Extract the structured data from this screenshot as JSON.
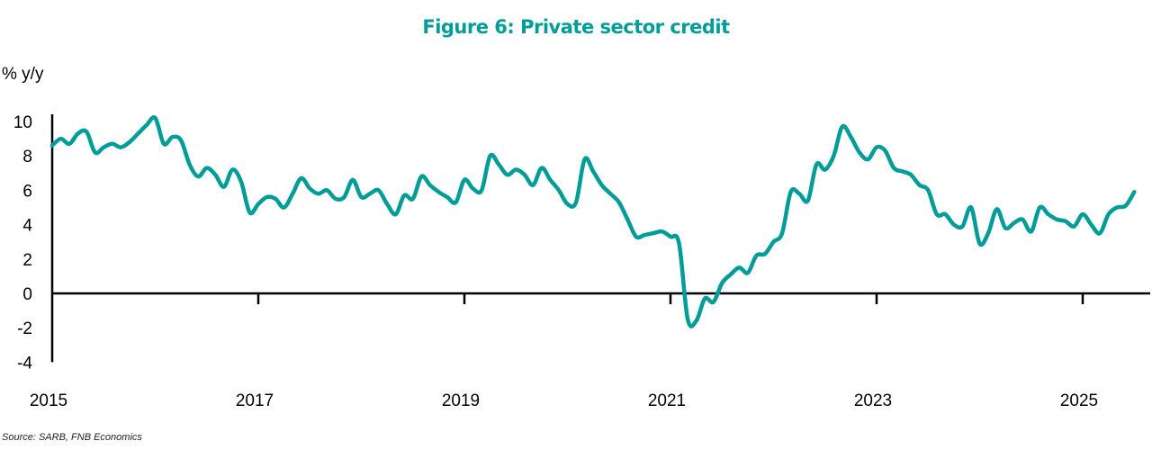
{
  "chart_data": {
    "type": "line",
    "title": "Figure 6: Private sector credit",
    "ylabel": "% y/y",
    "xlabel": "",
    "source": "Source: SARB, FNB Economics",
    "ylim": [
      -4,
      10
    ],
    "yticks": [
      10,
      8,
      6,
      4,
      2,
      0,
      -2,
      -4
    ],
    "xticks": [
      "2015",
      "2017",
      "2019",
      "2021",
      "2023",
      "2025"
    ],
    "x_start": "2015-01",
    "x_frequency": "monthly",
    "grid": false,
    "color": "#009C9A",
    "series": [
      {
        "name": "Private sector credit",
        "values": [
          8.6,
          9.0,
          8.7,
          9.3,
          9.4,
          8.2,
          8.5,
          8.7,
          8.5,
          8.8,
          9.3,
          9.8,
          10.2,
          8.7,
          9.1,
          8.9,
          7.5,
          6.8,
          7.3,
          6.9,
          6.2,
          7.2,
          6.5,
          4.7,
          5.2,
          5.6,
          5.5,
          5.0,
          5.8,
          6.7,
          6.1,
          5.8,
          6.0,
          5.5,
          5.6,
          6.6,
          5.6,
          5.8,
          6.0,
          5.2,
          4.6,
          5.7,
          5.5,
          6.8,
          6.3,
          5.9,
          5.6,
          5.3,
          6.6,
          6.1,
          6.0,
          8.0,
          7.5,
          6.9,
          7.2,
          6.9,
          6.3,
          7.3,
          6.6,
          6.0,
          5.2,
          5.3,
          7.8,
          7.1,
          6.3,
          5.8,
          5.3,
          4.3,
          3.3,
          3.4,
          3.5,
          3.6,
          3.3,
          2.9,
          -1.5,
          -1.6,
          -0.3,
          -0.5,
          0.6,
          1.1,
          1.5,
          1.2,
          2.2,
          2.3,
          3.0,
          3.5,
          5.9,
          5.8,
          5.4,
          7.5,
          7.2,
          8.0,
          9.7,
          9.1,
          8.2,
          7.8,
          8.5,
          8.3,
          7.3,
          7.1,
          6.9,
          6.3,
          6.0,
          4.6,
          4.6,
          4.0,
          3.9,
          5.0,
          2.9,
          3.5,
          4.9,
          3.8,
          4.1,
          4.3,
          3.6,
          5.0,
          4.6,
          4.3,
          4.2,
          3.9,
          4.6,
          4.0,
          3.5,
          4.6,
          5.0,
          5.1,
          5.9
        ]
      }
    ]
  }
}
